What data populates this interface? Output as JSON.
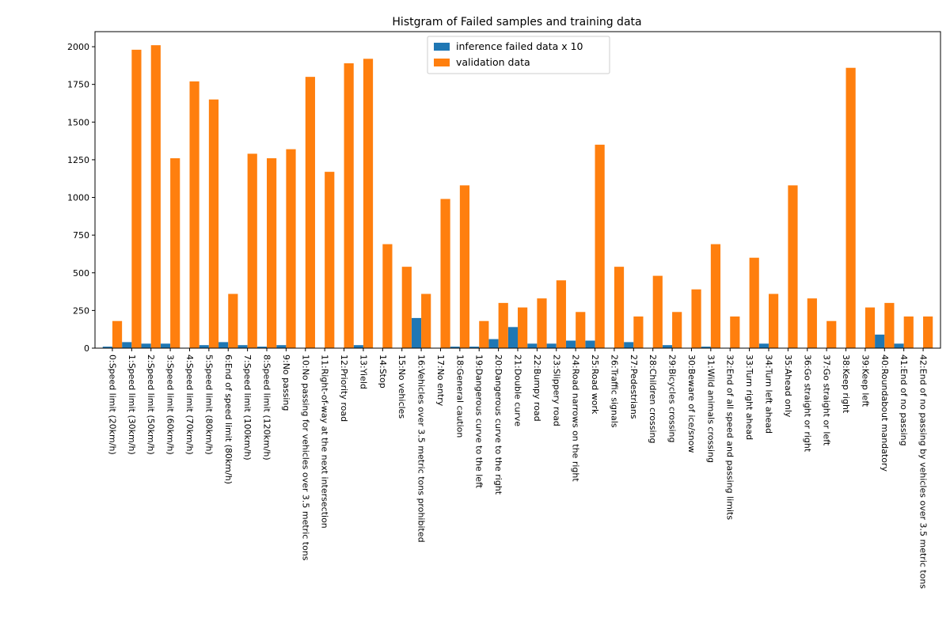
{
  "chart_data": {
    "type": "bar",
    "title": "Histgram of Failed samples and training data",
    "xlabel": "",
    "ylabel": "",
    "ylim": [
      0,
      2100
    ],
    "yticks": [
      0,
      250,
      500,
      750,
      1000,
      1250,
      1500,
      1750,
      2000
    ],
    "legend_position": "top-center",
    "categories": [
      "0:Speed limit (20km/h)",
      "1:Speed limit (30km/h)",
      "2:Speed limit (50km/h)",
      "3:Speed limit (60km/h)",
      "4:Speed limit (70km/h)",
      "5:Speed limit (80km/h)",
      "6:End of speed limit (80km/h)",
      "7:Speed limit (100km/h)",
      "8:Speed limit (120km/h)",
      "9:No passing",
      "10:No passing for vehicles over 3.5 metric tons",
      "11:Right-of-way at the next intersection",
      "12:Priority road",
      "13:Yield",
      "14:Stop",
      "15:No vehicles",
      "16:Vehicles over 3.5 metric tons prohibited",
      "17:No entry",
      "18:General caution",
      "19:Dangerous curve to the left",
      "20:Dangerous curve to the right",
      "21:Double curve",
      "22:Bumpy road",
      "23:Slippery road",
      "24:Road narrows on the right",
      "25:Road work",
      "26:Traffic signals",
      "27:Pedestrians",
      "28:Children crossing",
      "29:Bicycles crossing",
      "30:Beware of ice/snow",
      "31:Wild animals crossing",
      "32:End of all speed and passing limits",
      "33:Turn right ahead",
      "34:Turn left ahead",
      "35:Ahead only",
      "36:Go straight or right",
      "37:Go straight or left",
      "38:Keep right",
      "39:Keep left",
      "40:Roundabout mandatory",
      "41:End of no passing",
      "42:End of no passing by vehicles over 3.5 metric tons"
    ],
    "series": [
      {
        "name": "inference failed data x 10",
        "color": "#1f77b4",
        "values": [
          10,
          40,
          30,
          30,
          0,
          20,
          40,
          20,
          10,
          20,
          0,
          0,
          0,
          20,
          0,
          0,
          200,
          0,
          10,
          10,
          60,
          140,
          30,
          30,
          50,
          50,
          0,
          40,
          0,
          20,
          0,
          10,
          0,
          0,
          30,
          0,
          0,
          0,
          0,
          0,
          90,
          30,
          0
        ]
      },
      {
        "name": "validation data",
        "color": "#ff7f0e",
        "values": [
          180,
          1980,
          2010,
          1260,
          1770,
          1650,
          360,
          1290,
          1260,
          1320,
          1800,
          1170,
          1890,
          1920,
          690,
          540,
          360,
          990,
          1080,
          180,
          300,
          270,
          330,
          450,
          240,
          1350,
          540,
          210,
          480,
          240,
          390,
          690,
          210,
          600,
          360,
          1080,
          330,
          180,
          1860,
          270,
          300,
          210,
          210
        ]
      }
    ]
  }
}
